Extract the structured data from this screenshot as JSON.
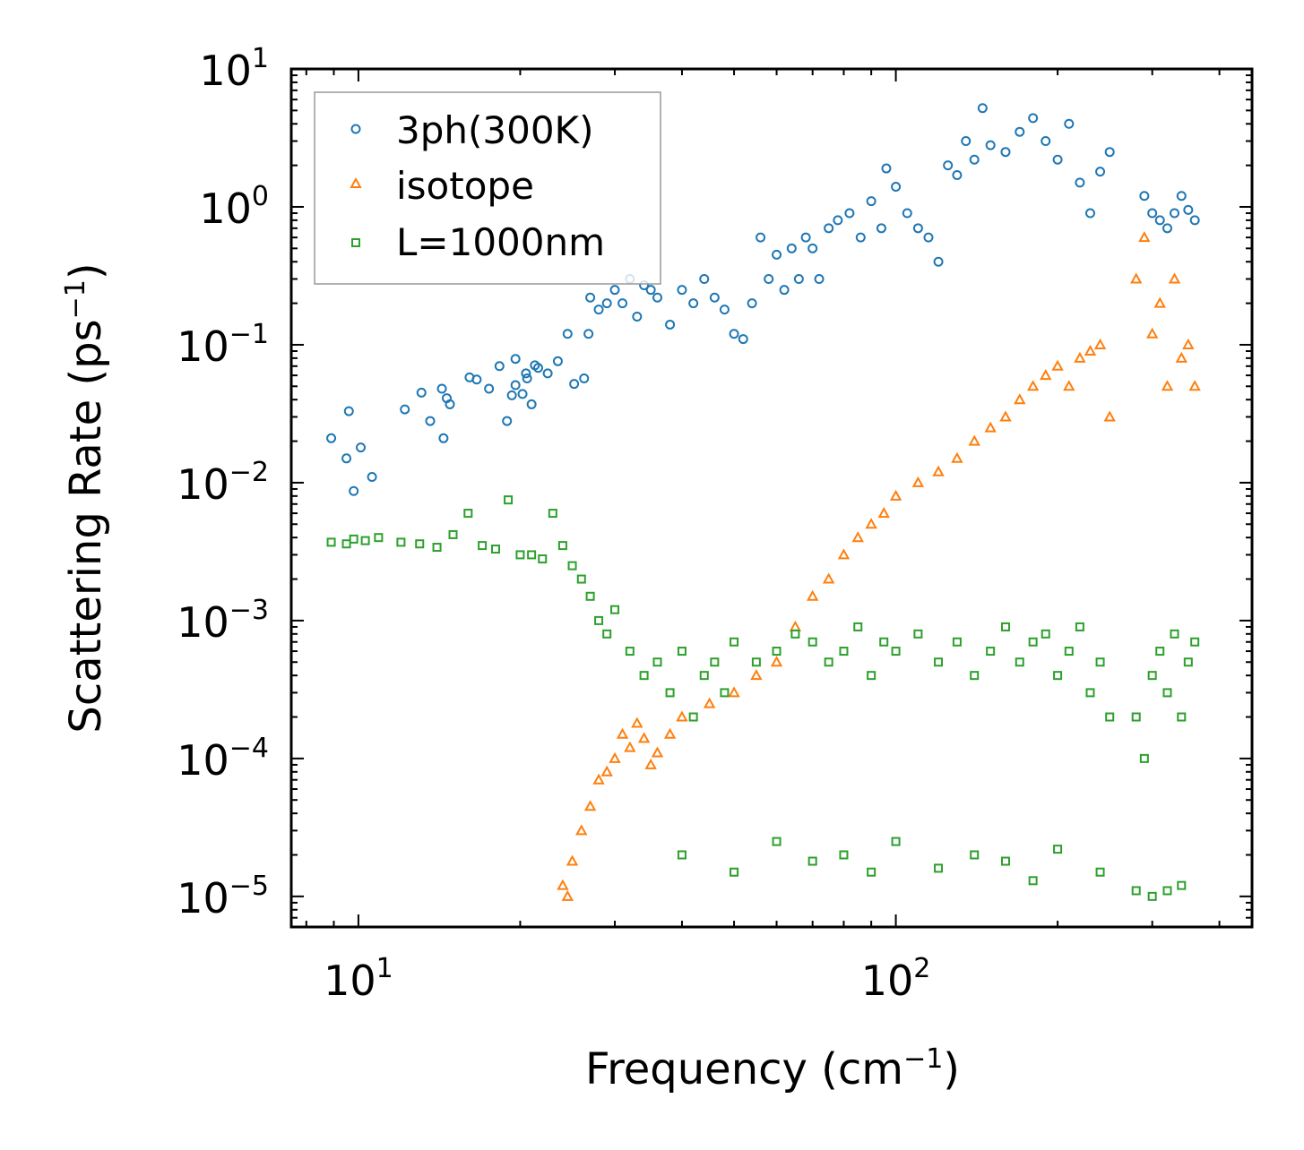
{
  "chart_data": {
    "type": "scatter",
    "title": "",
    "xlabel": "Frequency (cm",
    "xlabel_sup": "−1",
    "xlabel_end": ")",
    "ylabel": "Scattering Rate (ps",
    "ylabel_sup": "−1",
    "ylabel_end": ")",
    "xscale": "log",
    "yscale": "log",
    "xlim": [
      7.5,
      460
    ],
    "ylim": [
      6e-06,
      10
    ],
    "x_ticks": [
      {
        "value": 10,
        "base": "10",
        "exp": "1"
      },
      {
        "value": 100,
        "base": "10",
        "exp": "2"
      }
    ],
    "y_ticks": [
      {
        "value": 10,
        "base": "10",
        "exp": "1"
      },
      {
        "value": 1,
        "base": "10",
        "exp": "0"
      },
      {
        "value": 0.1,
        "base": "10",
        "exp": "−1"
      },
      {
        "value": 0.01,
        "base": "10",
        "exp": "−2"
      },
      {
        "value": 0.001,
        "base": "10",
        "exp": "−3"
      },
      {
        "value": 0.0001,
        "base": "10",
        "exp": "−4"
      },
      {
        "value": 1e-05,
        "base": "10",
        "exp": "−5"
      }
    ],
    "legend_position": "top-left",
    "series": [
      {
        "name": "3ph(300K)",
        "marker": "circle",
        "color": "#1f77b4",
        "points": [
          [
            8.9,
            0.021
          ],
          [
            9.5,
            0.015
          ],
          [
            9.6,
            0.033
          ],
          [
            9.8,
            0.0087
          ],
          [
            10.1,
            0.018
          ],
          [
            10.6,
            0.011
          ],
          [
            12.2,
            0.034
          ],
          [
            13.1,
            0.045
          ],
          [
            13.6,
            0.028
          ],
          [
            14.3,
            0.048
          ],
          [
            14.4,
            0.021
          ],
          [
            14.6,
            0.041
          ],
          [
            14.8,
            0.037
          ],
          [
            16.1,
            0.058
          ],
          [
            16.6,
            0.056
          ],
          [
            17.5,
            0.048
          ],
          [
            18.3,
            0.07
          ],
          [
            18.9,
            0.028
          ],
          [
            19.3,
            0.043
          ],
          [
            19.6,
            0.051
          ],
          [
            20.2,
            0.044
          ],
          [
            20.6,
            0.057
          ],
          [
            21,
            0.037
          ],
          [
            21.3,
            0.071
          ],
          [
            19.6,
            0.079
          ],
          [
            20.5,
            0.062
          ],
          [
            21.6,
            0.068
          ],
          [
            22.5,
            0.062
          ],
          [
            23.5,
            0.076
          ],
          [
            24.5,
            0.12
          ],
          [
            25.2,
            0.052
          ],
          [
            26.3,
            0.057
          ],
          [
            26.8,
            0.12
          ],
          [
            27,
            0.22
          ],
          [
            28,
            0.18
          ],
          [
            29,
            0.2
          ],
          [
            30,
            0.25
          ],
          [
            31,
            0.2
          ],
          [
            32,
            0.3
          ],
          [
            33,
            0.16
          ],
          [
            34,
            0.27
          ],
          [
            35,
            0.25
          ],
          [
            36,
            0.22
          ],
          [
            38,
            0.14
          ],
          [
            40,
            0.25
          ],
          [
            42,
            0.2
          ],
          [
            44,
            0.3
          ],
          [
            46,
            0.22
          ],
          [
            48,
            0.18
          ],
          [
            50,
            0.12
          ],
          [
            52,
            0.11
          ],
          [
            54,
            0.2
          ],
          [
            56,
            0.6
          ],
          [
            58,
            0.3
          ],
          [
            60,
            0.45
          ],
          [
            62,
            0.25
          ],
          [
            64,
            0.5
          ],
          [
            66,
            0.3
          ],
          [
            68,
            0.6
          ],
          [
            70,
            0.5
          ],
          [
            72,
            0.3
          ],
          [
            75,
            0.7
          ],
          [
            78,
            0.8
          ],
          [
            82,
            0.9
          ],
          [
            86,
            0.6
          ],
          [
            90,
            1.1
          ],
          [
            94,
            0.7
          ],
          [
            96,
            1.9
          ],
          [
            100,
            1.4
          ],
          [
            105,
            0.9
          ],
          [
            110,
            0.7
          ],
          [
            115,
            0.6
          ],
          [
            120,
            0.4
          ],
          [
            125,
            2.0
          ],
          [
            130,
            1.7
          ],
          [
            135,
            3.0
          ],
          [
            140,
            2.2
          ],
          [
            145,
            5.2
          ],
          [
            150,
            2.8
          ],
          [
            160,
            2.5
          ],
          [
            170,
            3.5
          ],
          [
            180,
            4.4
          ],
          [
            190,
            3.0
          ],
          [
            200,
            2.2
          ],
          [
            210,
            4.0
          ],
          [
            220,
            1.5
          ],
          [
            230,
            0.9
          ],
          [
            240,
            1.8
          ],
          [
            250,
            2.5
          ],
          [
            290,
            1.2
          ],
          [
            300,
            0.9
          ],
          [
            310,
            0.8
          ],
          [
            320,
            0.7
          ],
          [
            330,
            0.9
          ],
          [
            340,
            1.2
          ],
          [
            350,
            0.95
          ],
          [
            360,
            0.8
          ]
        ]
      },
      {
        "name": "isotope",
        "marker": "triangle",
        "color": "#ff7f0e",
        "points": [
          [
            24,
            1.2e-05
          ],
          [
            24.5,
            1e-05
          ],
          [
            25,
            1.8e-05
          ],
          [
            26,
            3e-05
          ],
          [
            27,
            4.5e-05
          ],
          [
            28,
            7e-05
          ],
          [
            29,
            8e-05
          ],
          [
            30,
            0.0001
          ],
          [
            31,
            0.00015
          ],
          [
            32,
            0.00012
          ],
          [
            33,
            0.00018
          ],
          [
            34,
            0.00014
          ],
          [
            35,
            9e-05
          ],
          [
            36,
            0.00011
          ],
          [
            38,
            0.00015
          ],
          [
            40,
            0.0002
          ],
          [
            45,
            0.00025
          ],
          [
            50,
            0.0003
          ],
          [
            55,
            0.0004
          ],
          [
            60,
            0.0005
          ],
          [
            65,
            0.0009
          ],
          [
            70,
            0.0015
          ],
          [
            75,
            0.002
          ],
          [
            80,
            0.003
          ],
          [
            85,
            0.004
          ],
          [
            90,
            0.005
          ],
          [
            95,
            0.006
          ],
          [
            100,
            0.008
          ],
          [
            110,
            0.01
          ],
          [
            120,
            0.012
          ],
          [
            130,
            0.015
          ],
          [
            140,
            0.02
          ],
          [
            150,
            0.025
          ],
          [
            160,
            0.03
          ],
          [
            170,
            0.04
          ],
          [
            180,
            0.05
          ],
          [
            190,
            0.06
          ],
          [
            200,
            0.07
          ],
          [
            210,
            0.05
          ],
          [
            220,
            0.08
          ],
          [
            230,
            0.09
          ],
          [
            240,
            0.1
          ],
          [
            250,
            0.03
          ],
          [
            280,
            0.3
          ],
          [
            290,
            0.6
          ],
          [
            300,
            0.12
          ],
          [
            310,
            0.2
          ],
          [
            320,
            0.05
          ],
          [
            330,
            0.3
          ],
          [
            340,
            0.08
          ],
          [
            350,
            0.1
          ],
          [
            360,
            0.05
          ]
        ]
      },
      {
        "name": "L=1000nm",
        "marker": "square",
        "color": "#2ca02c",
        "points": [
          [
            8.9,
            0.0037
          ],
          [
            9.5,
            0.0036
          ],
          [
            9.8,
            0.0039
          ],
          [
            10.3,
            0.0038
          ],
          [
            10.9,
            0.004
          ],
          [
            12,
            0.0037
          ],
          [
            13,
            0.0036
          ],
          [
            14,
            0.0034
          ],
          [
            15,
            0.0042
          ],
          [
            16,
            0.006
          ],
          [
            17,
            0.0035
          ],
          [
            18,
            0.0033
          ],
          [
            19,
            0.0075
          ],
          [
            20,
            0.003
          ],
          [
            21,
            0.003
          ],
          [
            22,
            0.0028
          ],
          [
            23,
            0.006
          ],
          [
            24,
            0.0035
          ],
          [
            25,
            0.0025
          ],
          [
            26,
            0.002
          ],
          [
            27,
            0.0015
          ],
          [
            28,
            0.001
          ],
          [
            29,
            0.0008
          ],
          [
            30,
            0.0012
          ],
          [
            32,
            0.0006
          ],
          [
            34,
            0.0004
          ],
          [
            36,
            0.0005
          ],
          [
            38,
            0.0003
          ],
          [
            40,
            0.0006
          ],
          [
            42,
            0.0002
          ],
          [
            44,
            0.0004
          ],
          [
            46,
            0.0005
          ],
          [
            48,
            0.0003
          ],
          [
            50,
            0.0007
          ],
          [
            55,
            0.0005
          ],
          [
            60,
            0.0006
          ],
          [
            65,
            0.0008
          ],
          [
            70,
            0.0007
          ],
          [
            75,
            0.0005
          ],
          [
            80,
            0.0006
          ],
          [
            85,
            0.0009
          ],
          [
            90,
            0.0004
          ],
          [
            95,
            0.0007
          ],
          [
            100,
            0.0006
          ],
          [
            110,
            0.0008
          ],
          [
            120,
            0.0005
          ],
          [
            130,
            0.0007
          ],
          [
            140,
            0.0004
          ],
          [
            150,
            0.0006
          ],
          [
            160,
            0.0009
          ],
          [
            170,
            0.0005
          ],
          [
            180,
            0.0007
          ],
          [
            190,
            0.0008
          ],
          [
            200,
            0.0004
          ],
          [
            210,
            0.0006
          ],
          [
            220,
            0.0009
          ],
          [
            230,
            0.0003
          ],
          [
            240,
            0.0005
          ],
          [
            250,
            0.0002
          ],
          [
            280,
            0.0002
          ],
          [
            290,
            0.0001
          ],
          [
            300,
            0.0004
          ],
          [
            310,
            0.0006
          ],
          [
            320,
            0.0003
          ],
          [
            330,
            0.0008
          ],
          [
            340,
            0.0002
          ],
          [
            350,
            0.0005
          ],
          [
            360,
            0.0007
          ],
          [
            40,
            2e-05
          ],
          [
            50,
            1.5e-05
          ],
          [
            60,
            2.5e-05
          ],
          [
            70,
            1.8e-05
          ],
          [
            80,
            2e-05
          ],
          [
            90,
            1.5e-05
          ],
          [
            100,
            2.5e-05
          ],
          [
            120,
            1.6e-05
          ],
          [
            140,
            2e-05
          ],
          [
            160,
            1.8e-05
          ],
          [
            180,
            1.3e-05
          ],
          [
            200,
            2.2e-05
          ],
          [
            240,
            1.5e-05
          ],
          [
            280,
            1.1e-05
          ],
          [
            300,
            1e-05
          ],
          [
            320,
            1.1e-05
          ],
          [
            340,
            1.2e-05
          ]
        ]
      }
    ]
  }
}
